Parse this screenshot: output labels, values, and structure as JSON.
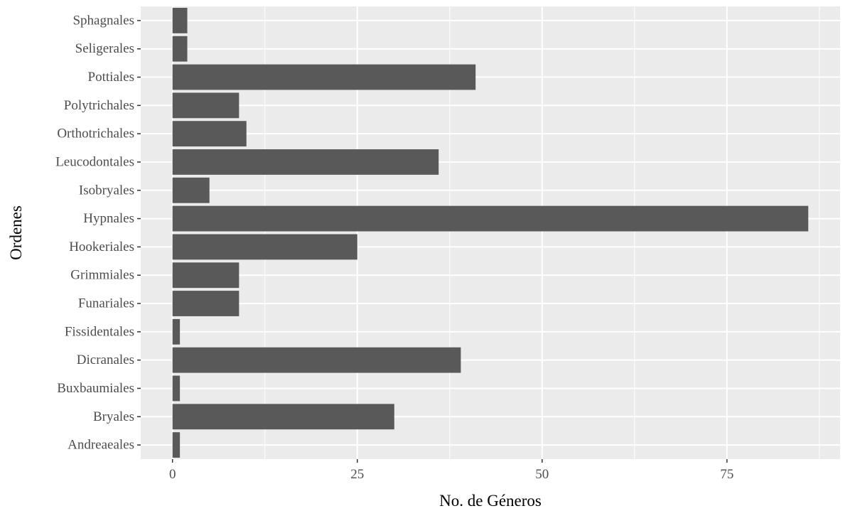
{
  "chart_data": {
    "type": "bar",
    "orientation": "horizontal",
    "categories": [
      "Andreaeales",
      "Bryales",
      "Buxbaumiales",
      "Dicranales",
      "Fissidentales",
      "Funariales",
      "Grimmiales",
      "Hookeriales",
      "Hypnales",
      "Isobryales",
      "Leucodontales",
      "Orthotrichales",
      "Polytrichales",
      "Pottiales",
      "Seligerales",
      "Sphagnales"
    ],
    "values": [
      1,
      30,
      1,
      39,
      1,
      9,
      9,
      25,
      86,
      5,
      36,
      10,
      9,
      41,
      2,
      2
    ],
    "xlabel": "No. de Géneros",
    "ylabel": "Ordenes",
    "xlim": [
      -4.3,
      90.3
    ],
    "xticks": [
      0,
      25,
      50,
      75
    ],
    "grid": true,
    "colors": {
      "bar": "#595959",
      "panel": "#ebebeb",
      "grid": "#ffffff"
    }
  }
}
